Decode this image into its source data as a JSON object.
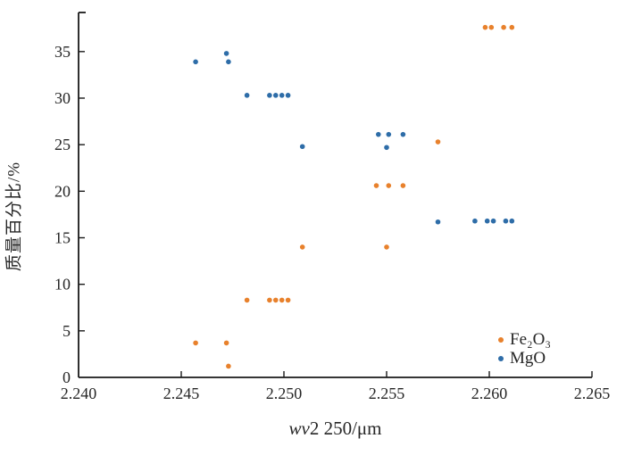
{
  "figure": {
    "background": "#ffffff",
    "axis_color": "#1a1a1a",
    "tick_label_color": "#262626"
  },
  "chart_data": {
    "type": "scatter",
    "title": "",
    "xlabel_italic": "wv",
    "xlabel_rest": "2 250/μm",
    "ylabel": "质量百分比/%",
    "xlim": [
      2.24,
      2.265
    ],
    "ylim": [
      0,
      39.2
    ],
    "x_ticks": [
      2.24,
      2.245,
      2.25,
      2.255,
      2.26,
      2.265
    ],
    "x_tick_labels": [
      "2.240",
      "2.245",
      "2.250",
      "2.255",
      "2.260",
      "2.265"
    ],
    "y_ticks": [
      0,
      5,
      10,
      15,
      20,
      25,
      30,
      35
    ],
    "y_tick_labels": [
      "0",
      "5",
      "10",
      "15",
      "20",
      "25",
      "30",
      "35"
    ],
    "grid": false,
    "legend_position": "lower right",
    "marker_radius": 2.8,
    "series": [
      {
        "name": "Fe₂O₃",
        "color": "#e8812c",
        "points": [
          [
            2.2457,
            3.7
          ],
          [
            2.2472,
            3.7
          ],
          [
            2.2473,
            1.2
          ],
          [
            2.2482,
            8.3
          ],
          [
            2.2493,
            8.3
          ],
          [
            2.2496,
            8.3
          ],
          [
            2.2499,
            8.3
          ],
          [
            2.2502,
            8.3
          ],
          [
            2.2509,
            14.0
          ],
          [
            2.255,
            14.0
          ],
          [
            2.2545,
            20.6
          ],
          [
            2.2551,
            20.6
          ],
          [
            2.2558,
            20.6
          ],
          [
            2.2575,
            25.3
          ],
          [
            2.2598,
            37.6
          ],
          [
            2.2601,
            37.6
          ],
          [
            2.2607,
            37.6
          ],
          [
            2.2611,
            37.6
          ]
        ]
      },
      {
        "name": "MgO",
        "color": "#2e6da8",
        "points": [
          [
            2.2457,
            33.9
          ],
          [
            2.2472,
            34.8
          ],
          [
            2.2473,
            33.9
          ],
          [
            2.2482,
            30.3
          ],
          [
            2.2493,
            30.3
          ],
          [
            2.2496,
            30.3
          ],
          [
            2.2499,
            30.3
          ],
          [
            2.2502,
            30.3
          ],
          [
            2.2509,
            24.8
          ],
          [
            2.2546,
            26.1
          ],
          [
            2.2551,
            26.1
          ],
          [
            2.2558,
            26.1
          ],
          [
            2.255,
            24.7
          ],
          [
            2.2575,
            16.7
          ],
          [
            2.2593,
            16.8
          ],
          [
            2.2599,
            16.8
          ],
          [
            2.2602,
            16.8
          ],
          [
            2.2608,
            16.8
          ],
          [
            2.2611,
            16.8
          ]
        ]
      }
    ]
  }
}
